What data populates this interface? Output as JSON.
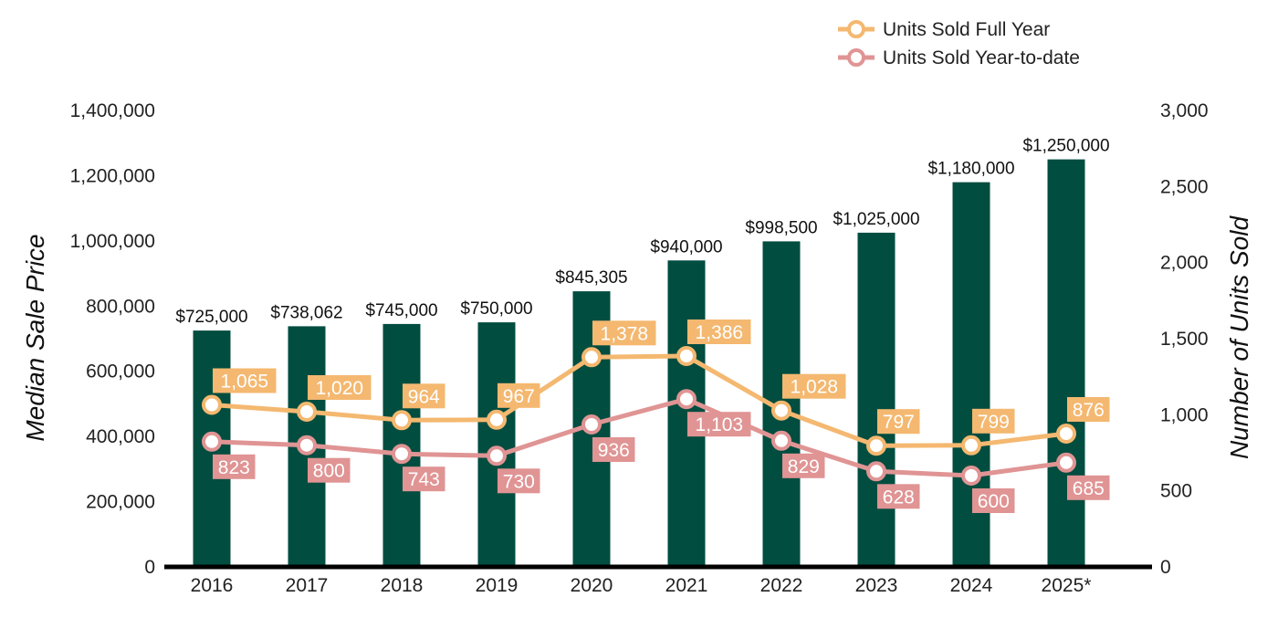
{
  "chart_data": {
    "type": "bar",
    "title": "",
    "categories": [
      "2016",
      "2017",
      "2018",
      "2019",
      "2020",
      "2021",
      "2022",
      "2023",
      "2024",
      "2025*"
    ],
    "bars": {
      "name": "Median Sale Price",
      "values": [
        725000,
        738062,
        745000,
        750000,
        845305,
        940000,
        998500,
        1025000,
        1180000,
        1250000
      ],
      "labels": [
        "$725,000",
        "$738,062",
        "$745,000",
        "$750,000",
        "$845,305",
        "$940,000",
        "$998,500",
        "$1,025,000",
        "$1,180,000",
        "$1,250,000"
      ],
      "color": "#014d40"
    },
    "lines": [
      {
        "name": "Units Sold Full Year",
        "values": [
          1065,
          1020,
          964,
          967,
          1378,
          1386,
          1028,
          797,
          799,
          876
        ],
        "labels": [
          "1,065",
          "1,020",
          "964",
          "967",
          "1,378",
          "1,386",
          "1,028",
          "797",
          "799",
          "876"
        ],
        "color": "#f4b870"
      },
      {
        "name": "Units Sold Year-to-date",
        "values": [
          823,
          800,
          743,
          730,
          936,
          1103,
          829,
          628,
          600,
          685
        ],
        "labels": [
          "823",
          "800",
          "743",
          "730",
          "936",
          "1,103",
          "829",
          "628",
          "600",
          "685"
        ],
        "color": "#e09494"
      }
    ],
    "y_left": {
      "label": "Median Sale Price",
      "range": [
        0,
        1400000
      ],
      "ticks": [
        0,
        200000,
        400000,
        600000,
        800000,
        1000000,
        1200000,
        1400000
      ],
      "tick_labels": [
        "0",
        "200,000",
        "400,000",
        "600,000",
        "800,000",
        "1,000,000",
        "1,200,000",
        "1,400,000"
      ]
    },
    "y_right": {
      "label": "Number of Units Sold",
      "range": [
        0,
        3000
      ],
      "ticks": [
        0,
        500,
        1000,
        1500,
        2000,
        2500,
        3000
      ],
      "tick_labels": [
        "0",
        "500",
        "1,000",
        "1,500",
        "2,000",
        "2,500",
        "3,000"
      ]
    },
    "grid": false,
    "legend_position": "top-right"
  }
}
